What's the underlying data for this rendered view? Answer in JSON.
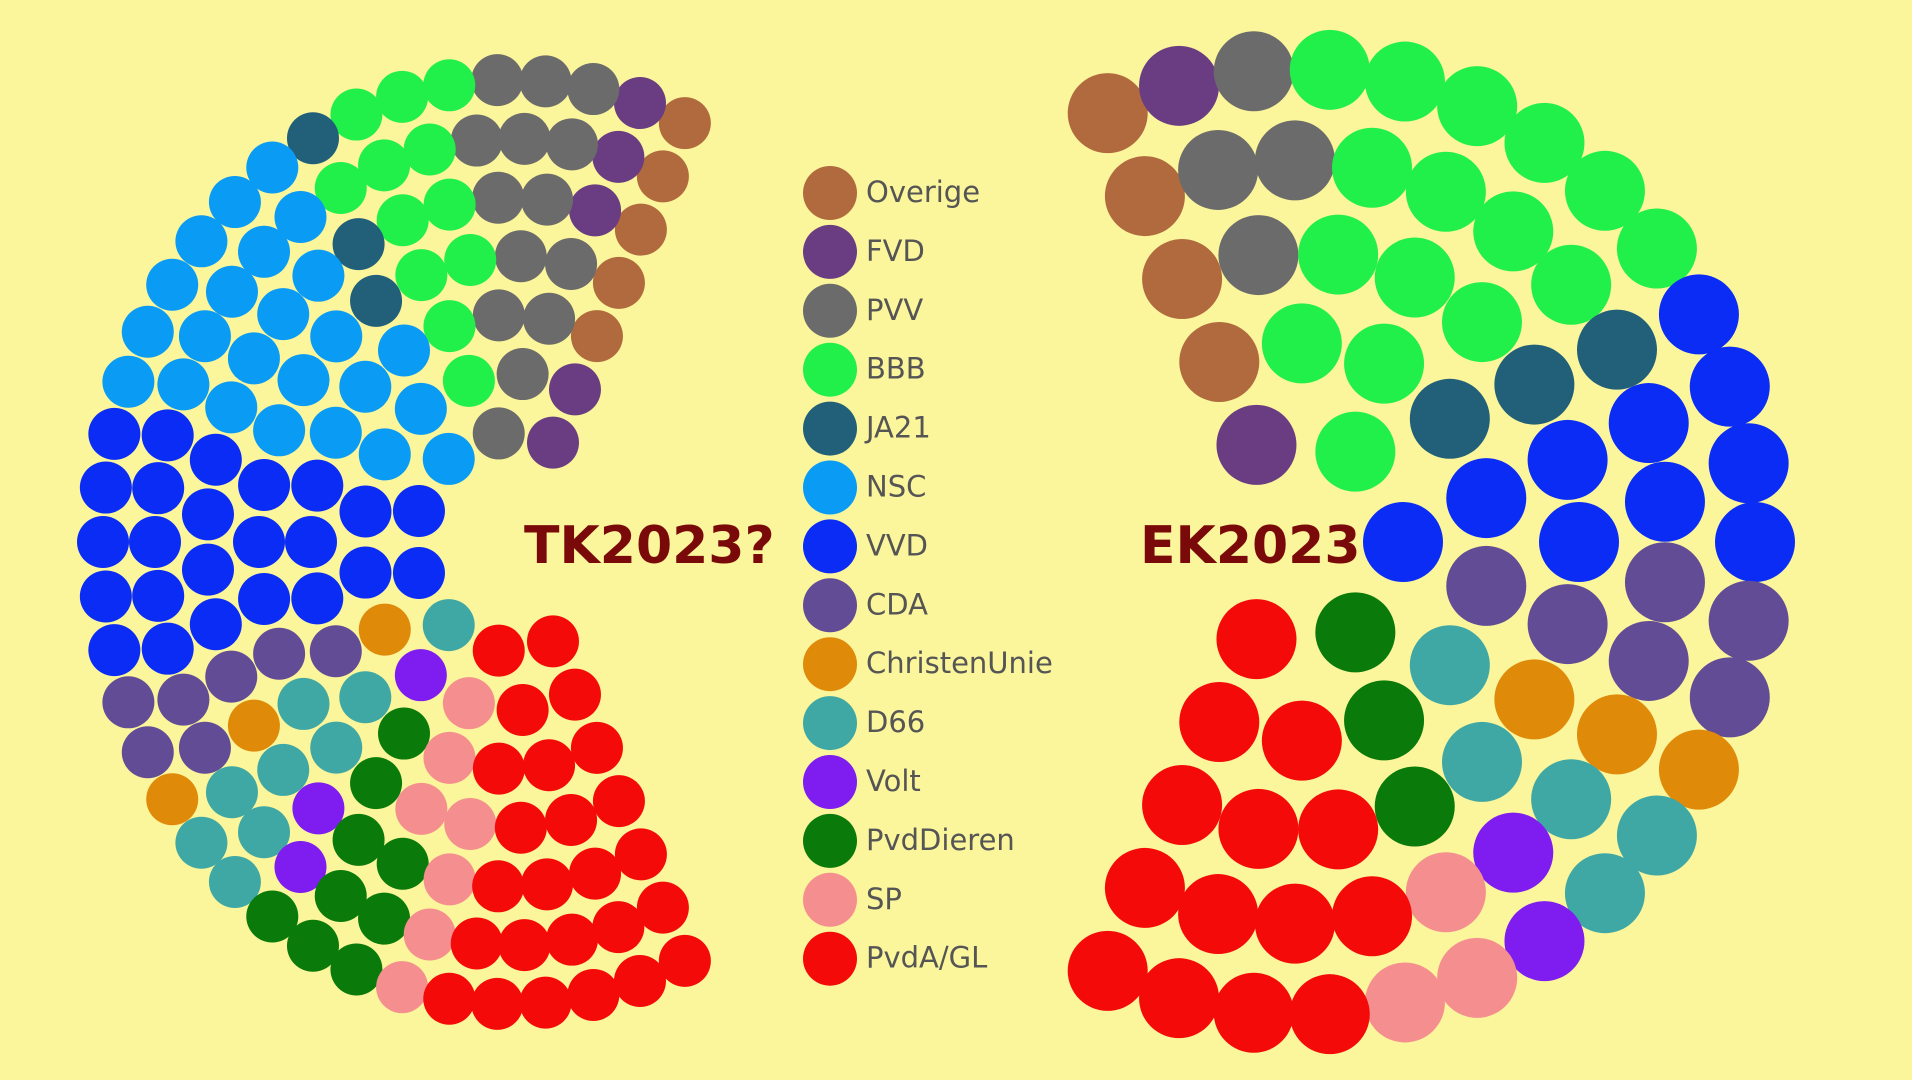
{
  "chart_data": [
    {
      "type": "parliament",
      "title": "TK2023?",
      "categories": [
        "Overige",
        "FVD",
        "PVV",
        "BBB",
        "JA21",
        "NSC",
        "VVD",
        "CDA",
        "ChristenUnie",
        "D66",
        "Volt",
        "PvdDieren",
        "SP",
        "PvdA/GL"
      ],
      "colors": [
        "#b06a3e",
        "#6a3d82",
        "#6b6b6b",
        "#22f04a",
        "#22607a",
        "#0a9bf5",
        "#0a2cf5",
        "#634c96",
        "#e08a0a",
        "#3fa8a5",
        "#7f1cf0",
        "#0a7a0a",
        "#f58f8f",
        "#f50a0a"
      ],
      "values": [
        5,
        5,
        14,
        12,
        3,
        24,
        24,
        7,
        3,
        9,
        3,
        9,
        7,
        25
      ]
    },
    {
      "type": "parliament",
      "title": "EK2023",
      "values": [
        4,
        2,
        4,
        16,
        3,
        0,
        10,
        6,
        3,
        5,
        2,
        3,
        3,
        14
      ]
    }
  ]
}
